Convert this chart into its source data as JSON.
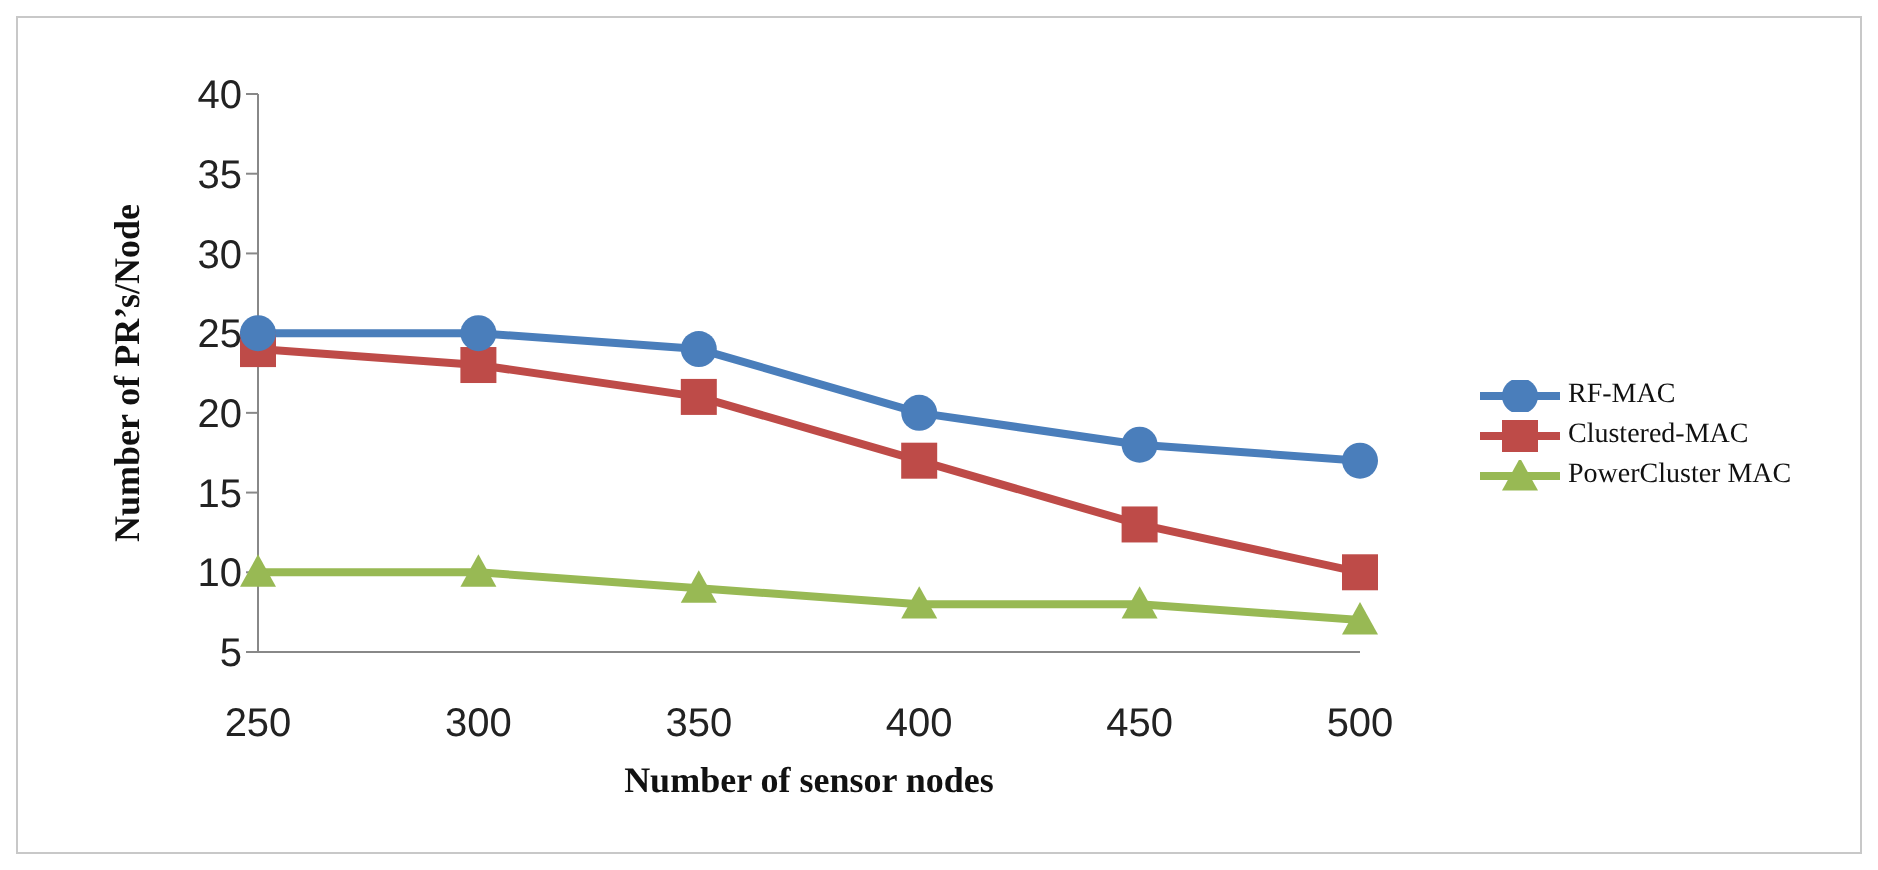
{
  "chart_data": {
    "type": "line",
    "xlabel": "Number of sensor nodes",
    "ylabel": "Number of PR’s/Node",
    "categories": [
      "250",
      "300",
      "350",
      "400",
      "450",
      "500"
    ],
    "series": [
      {
        "name": "RF-MAC",
        "color": "#4a7ebb",
        "marker": "circle",
        "values": [
          25,
          25,
          24,
          20,
          18,
          17
        ]
      },
      {
        "name": "Clustered-MAC",
        "color": "#be4b48",
        "marker": "square",
        "values": [
          24,
          23,
          21,
          17,
          13,
          10
        ]
      },
      {
        "name": "PowerCluster MAC",
        "color": "#98b954",
        "marker": "triangle",
        "values": [
          10,
          10,
          9,
          8,
          8,
          7
        ]
      }
    ],
    "ylim": [
      5,
      40
    ],
    "yticks": [
      5,
      10,
      15,
      20,
      25,
      30,
      35,
      40
    ],
    "grid": false,
    "legend": "right",
    "line_style": "solid"
  }
}
